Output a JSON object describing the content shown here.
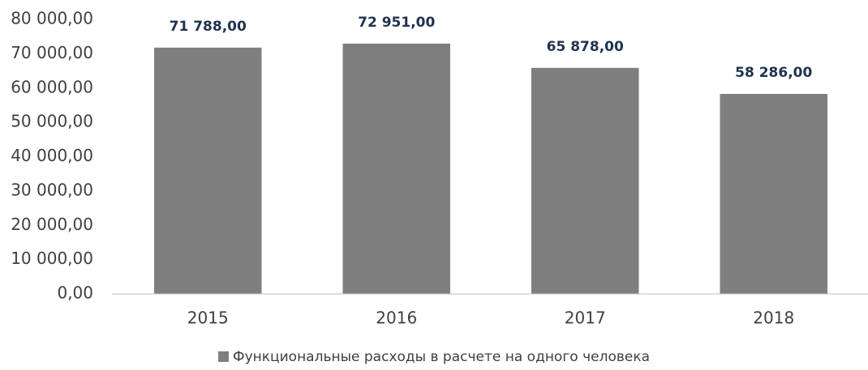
{
  "chart_data": {
    "type": "bar",
    "categories": [
      "2015",
      "2016",
      "2017",
      "2018"
    ],
    "series": [
      {
        "name": "Функциональные расходы в расчете на одного человека",
        "color": "#7f7f7f",
        "values": [
          71788,
          72951,
          65878,
          58286
        ],
        "value_labels": [
          "71 788,00",
          "72 951,00",
          "65 878,00",
          "58 286,00"
        ]
      }
    ],
    "ylim": [
      0,
      80000
    ],
    "yticks": [
      {
        "value": 0,
        "label": "0,00"
      },
      {
        "value": 10000,
        "label": "10 000,00"
      },
      {
        "value": 20000,
        "label": "20 000,00"
      },
      {
        "value": 30000,
        "label": "30 000,00"
      },
      {
        "value": 40000,
        "label": "40 000,00"
      },
      {
        "value": 50000,
        "label": "50 000,00"
      },
      {
        "value": 60000,
        "label": "60 000,00"
      },
      {
        "value": 70000,
        "label": "70 000,00"
      },
      {
        "value": 80000,
        "label": "80 000,00"
      }
    ],
    "grid": false,
    "legend": "bottom"
  }
}
